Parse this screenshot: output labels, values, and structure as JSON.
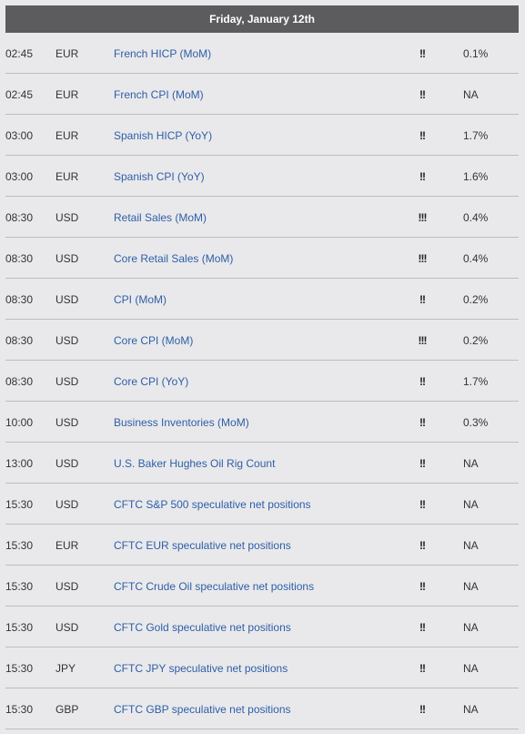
{
  "header": {
    "date": "Friday, January 12th"
  },
  "colors": {
    "header_bg": "#5c5c5e",
    "page_bg": "#e9e9eb",
    "event_link": "#2e5ea8",
    "divider": "#bdbdc0"
  },
  "events": [
    {
      "time": "02:45",
      "currency": "EUR",
      "event": "French HICP (MoM)",
      "impact": "!!",
      "actual": "0.1%"
    },
    {
      "time": "02:45",
      "currency": "EUR",
      "event": "French CPI (MoM)",
      "impact": "!!",
      "actual": "NA"
    },
    {
      "time": "03:00",
      "currency": "EUR",
      "event": "Spanish HICP (YoY)",
      "impact": "!!",
      "actual": "1.7%"
    },
    {
      "time": "03:00",
      "currency": "EUR",
      "event": "Spanish CPI (YoY)",
      "impact": "!!",
      "actual": "1.6%"
    },
    {
      "time": "08:30",
      "currency": "USD",
      "event": "Retail Sales (MoM)",
      "impact": "!!!",
      "actual": "0.4%"
    },
    {
      "time": "08:30",
      "currency": "USD",
      "event": "Core Retail Sales (MoM)",
      "impact": "!!!",
      "actual": "0.4%"
    },
    {
      "time": "08:30",
      "currency": "USD",
      "event": "CPI (MoM)",
      "impact": "!!",
      "actual": "0.2%"
    },
    {
      "time": "08:30",
      "currency": "USD",
      "event": "Core CPI (MoM)",
      "impact": "!!!",
      "actual": "0.2%"
    },
    {
      "time": "08:30",
      "currency": "USD",
      "event": "Core CPI (YoY)",
      "impact": "!!",
      "actual": "1.7%"
    },
    {
      "time": "10:00",
      "currency": "USD",
      "event": "Business Inventories (MoM)",
      "impact": "!!",
      "actual": "0.3%"
    },
    {
      "time": "13:00",
      "currency": "USD",
      "event": "U.S. Baker Hughes Oil Rig Count",
      "impact": "!!",
      "actual": "NA"
    },
    {
      "time": "15:30",
      "currency": "USD",
      "event": "CFTC S&P 500 speculative net positions",
      "impact": "!!",
      "actual": "NA"
    },
    {
      "time": "15:30",
      "currency": "EUR",
      "event": "CFTC EUR speculative net positions",
      "impact": "!!",
      "actual": "NA"
    },
    {
      "time": "15:30",
      "currency": "USD",
      "event": "CFTC Crude Oil speculative net positions",
      "impact": "!!",
      "actual": "NA"
    },
    {
      "time": "15:30",
      "currency": "USD",
      "event": "CFTC Gold speculative net positions",
      "impact": "!!",
      "actual": "NA"
    },
    {
      "time": "15:30",
      "currency": "JPY",
      "event": "CFTC JPY speculative net positions",
      "impact": "!!",
      "actual": "NA"
    },
    {
      "time": "15:30",
      "currency": "GBP",
      "event": "CFTC GBP speculative net positions",
      "impact": "!!",
      "actual": "NA"
    }
  ]
}
